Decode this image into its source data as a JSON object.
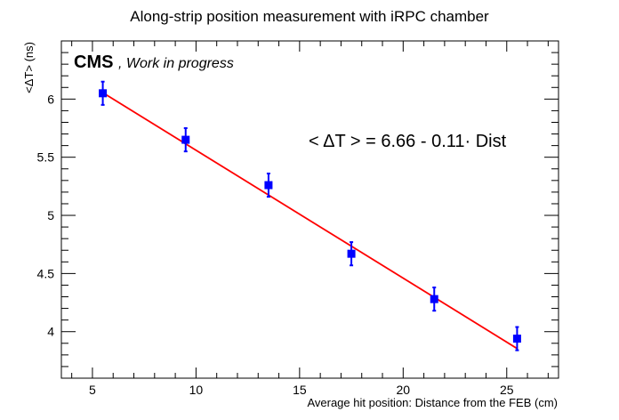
{
  "chart_data": {
    "type": "scatter",
    "title": "Along-strip position measurement with iRPC chamber",
    "xlabel": "Average hit position: Distance from the FEB (cm)",
    "ylabel": "<ΔT> (ns)",
    "xlim": [
      3.5,
      27.5
    ],
    "ylim": [
      3.6,
      6.5
    ],
    "xticks": [
      5,
      10,
      15,
      20,
      25
    ],
    "xtick_labels": [
      "5",
      "10",
      "15",
      "20",
      "25"
    ],
    "yticks": [
      4,
      4.5,
      5,
      5.5,
      6
    ],
    "ytick_labels": [
      "4",
      "4.5",
      "5",
      "5.5",
      "6"
    ],
    "grid": false,
    "series": [
      {
        "points": [
          {
            "x": 5.5,
            "y": 6.05,
            "err": 0.1
          },
          {
            "x": 9.5,
            "y": 5.65,
            "err": 0.1
          },
          {
            "x": 13.5,
            "y": 5.26,
            "err": 0.1
          },
          {
            "x": 17.5,
            "y": 4.67,
            "err": 0.1
          },
          {
            "x": 21.5,
            "y": 4.28,
            "err": 0.1
          },
          {
            "x": 25.5,
            "y": 3.94,
            "err": 0.1
          }
        ],
        "color": "#0000ff"
      }
    ],
    "fit": {
      "intercept": 6.66,
      "slope": -0.11,
      "xrange": [
        5.5,
        25.5
      ],
      "color": "#ff0000",
      "label": "< ΔT > = 6.66 - 0.11· Dist"
    },
    "annotations": {
      "experiment": "CMS",
      "status": ", Work in progress"
    }
  }
}
